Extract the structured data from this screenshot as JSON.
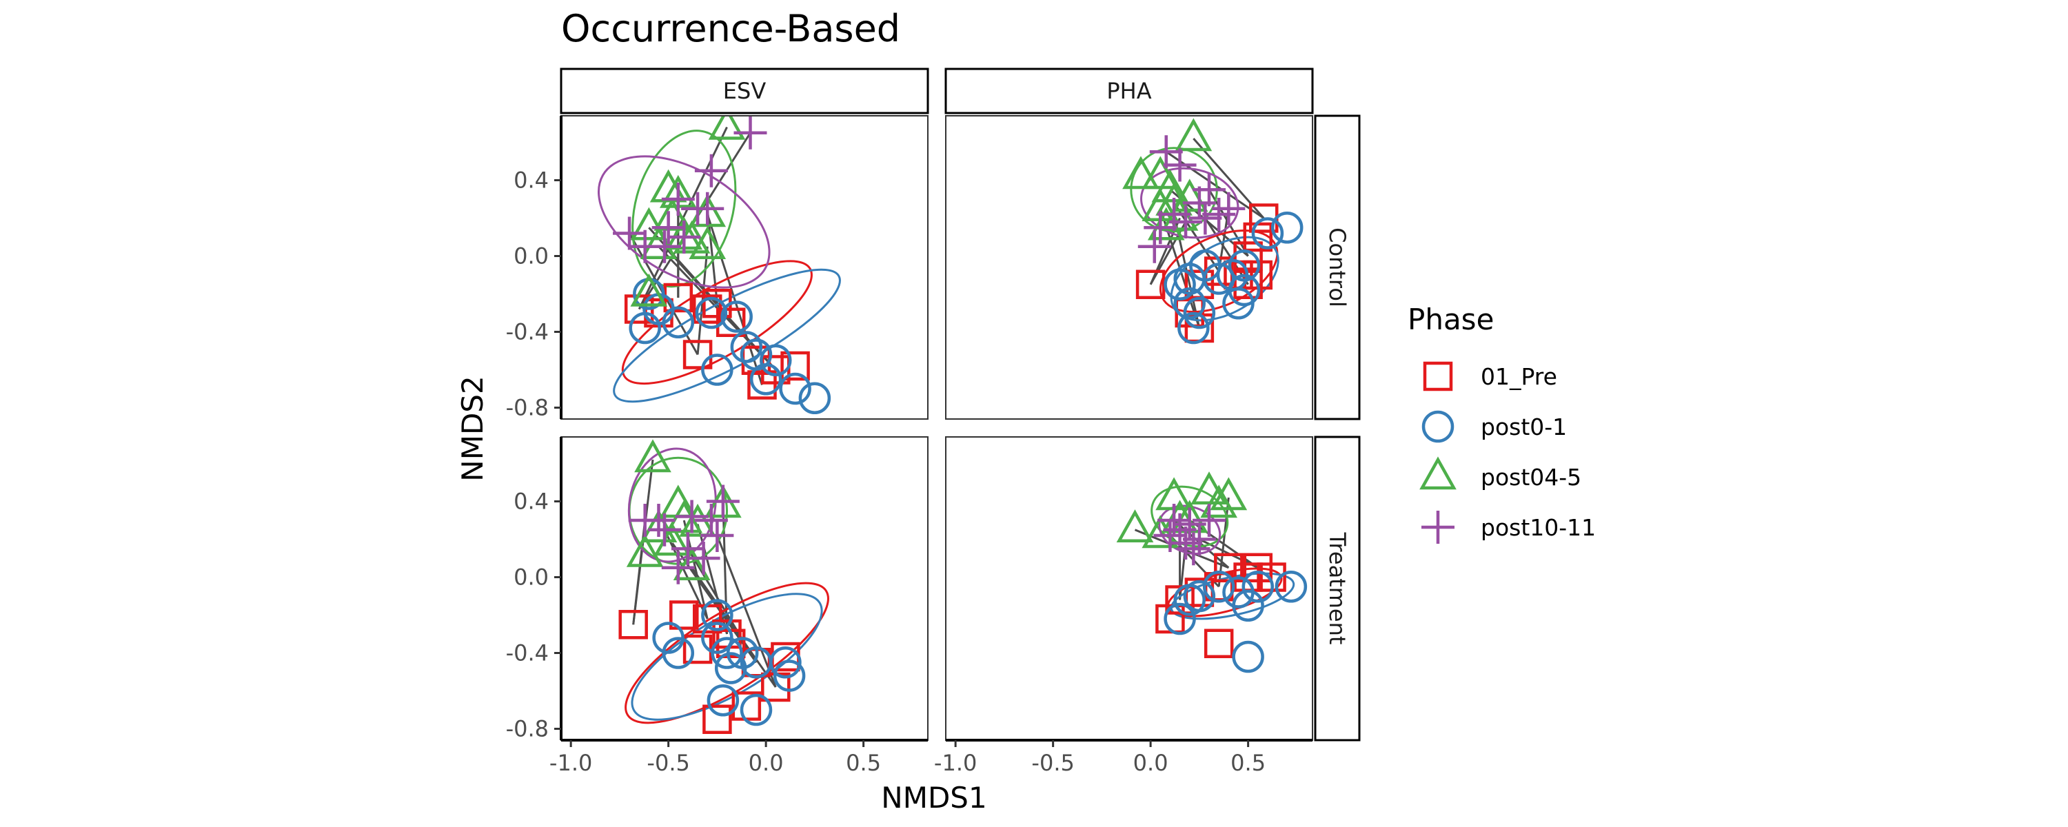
{
  "chart_data": {
    "type": "scatter",
    "title": "Occurrence-Based",
    "xlabel": "NMDS1",
    "ylabel": "NMDS2",
    "xlim": [
      -1.05,
      0.83
    ],
    "ylim": [
      -0.86,
      0.74
    ],
    "x_ticks": [
      -1.0,
      -0.5,
      0.0,
      0.5
    ],
    "x_tick_labels": [
      "-1.0",
      "-0.5",
      "0.0",
      "0.5"
    ],
    "y_ticks": [
      -0.8,
      -0.4,
      0.0,
      0.4
    ],
    "y_tick_labels": [
      "-0.8",
      "-0.4",
      "0.0",
      "0.4"
    ],
    "grid": false,
    "column_facets": [
      "ESV",
      "PHA"
    ],
    "row_facets": [
      "Control",
      "Treatment"
    ],
    "legend": {
      "title": "Phase",
      "placement": "right",
      "entries": [
        {
          "label": "01_Pre",
          "shape": "square",
          "color": "#E41A1C"
        },
        {
          "label": "post0-1",
          "shape": "circle",
          "color": "#377EB8"
        },
        {
          "label": "post04-5",
          "shape": "triangle",
          "color": "#4DAF4A"
        },
        {
          "label": "post10-11",
          "shape": "plus",
          "color": "#984EA3"
        }
      ]
    },
    "ellipses_per_phase": true,
    "trajectory_lines": true,
    "panels": [
      {
        "column": "ESV",
        "row": "Control",
        "series": [
          {
            "phase": "01_Pre",
            "points": [
              [
                -0.65,
                -0.28
              ],
              [
                -0.55,
                -0.3
              ],
              [
                -0.45,
                -0.22
              ],
              [
                -0.3,
                -0.28
              ],
              [
                -0.25,
                -0.25
              ],
              [
                -0.18,
                -0.35
              ],
              [
                -0.35,
                -0.52
              ],
              [
                -0.05,
                -0.55
              ],
              [
                0.05,
                -0.6
              ],
              [
                0.15,
                -0.58
              ],
              [
                -0.02,
                -0.68
              ]
            ]
          },
          {
            "phase": "post0-1",
            "points": [
              [
                -0.6,
                -0.2
              ],
              [
                -0.55,
                -0.28
              ],
              [
                -0.62,
                -0.38
              ],
              [
                -0.45,
                -0.35
              ],
              [
                -0.28,
                -0.3
              ],
              [
                -0.15,
                -0.32
              ],
              [
                -0.1,
                -0.48
              ],
              [
                -0.05,
                -0.52
              ],
              [
                0.05,
                -0.55
              ],
              [
                -0.25,
                -0.6
              ],
              [
                0.0,
                -0.65
              ],
              [
                0.15,
                -0.7
              ],
              [
                0.25,
                -0.75
              ]
            ]
          },
          {
            "phase": "post04-5",
            "points": [
              [
                -0.2,
                0.68
              ],
              [
                -0.5,
                0.35
              ],
              [
                -0.45,
                0.32
              ],
              [
                -0.48,
                0.2
              ],
              [
                -0.6,
                0.15
              ],
              [
                -0.42,
                0.1
              ],
              [
                -0.3,
                0.05
              ],
              [
                -0.38,
                0.08
              ],
              [
                -0.55,
                0.05
              ],
              [
                -0.6,
                -0.2
              ],
              [
                -0.3,
                0.22
              ]
            ]
          },
          {
            "phase": "post10-11",
            "points": [
              [
                -0.08,
                0.65
              ],
              [
                -0.28,
                0.45
              ],
              [
                -0.45,
                0.3
              ],
              [
                -0.35,
                0.25
              ],
              [
                -0.3,
                0.25
              ],
              [
                -0.5,
                0.15
              ],
              [
                -0.7,
                0.12
              ],
              [
                -0.62,
                0.05
              ],
              [
                -0.52,
                0.05
              ],
              [
                -0.42,
                0.1
              ]
            ]
          }
        ],
        "ellipses": [
          {
            "phase": "01_Pre",
            "cx": -0.25,
            "cy": -0.35,
            "rx": 0.55,
            "ry": 0.18,
            "angle": -30
          },
          {
            "phase": "post0-1",
            "cx": -0.2,
            "cy": -0.42,
            "rx": 0.65,
            "ry": 0.17,
            "angle": -28
          },
          {
            "phase": "post04-5",
            "cx": -0.42,
            "cy": 0.25,
            "rx": 0.25,
            "ry": 0.42,
            "angle": 15
          },
          {
            "phase": "post10-11",
            "cx": -0.42,
            "cy": 0.18,
            "rx": 0.48,
            "ry": 0.28,
            "angle": 30
          }
        ]
      },
      {
        "column": "PHA",
        "row": "Control",
        "series": [
          {
            "phase": "01_Pre",
            "points": [
              [
                0.58,
                0.2
              ],
              [
                0.55,
                0.1
              ],
              [
                0.5,
                0.0
              ],
              [
                0.45,
                -0.1
              ],
              [
                0.35,
                -0.08
              ],
              [
                0.25,
                -0.15
              ],
              [
                0.0,
                -0.15
              ],
              [
                0.2,
                -0.3
              ],
              [
                0.25,
                -0.38
              ],
              [
                0.55,
                -0.1
              ],
              [
                0.5,
                -0.15
              ]
            ]
          },
          {
            "phase": "post0-1",
            "points": [
              [
                0.6,
                0.12
              ],
              [
                0.7,
                0.15
              ],
              [
                0.48,
                -0.05
              ],
              [
                0.42,
                -0.1
              ],
              [
                0.35,
                -0.12
              ],
              [
                0.28,
                -0.05
              ],
              [
                0.2,
                -0.12
              ],
              [
                0.15,
                -0.15
              ],
              [
                0.2,
                -0.25
              ],
              [
                0.25,
                -0.3
              ],
              [
                0.22,
                -0.38
              ],
              [
                0.48,
                -0.18
              ],
              [
                0.45,
                -0.25
              ]
            ]
          },
          {
            "phase": "post04-5",
            "points": [
              [
                0.22,
                0.62
              ],
              [
                0.05,
                0.42
              ],
              [
                0.1,
                0.35
              ],
              [
                -0.05,
                0.42
              ],
              [
                0.12,
                0.28
              ],
              [
                0.2,
                0.3
              ],
              [
                0.15,
                0.2
              ],
              [
                0.08,
                0.15
              ],
              [
                0.05,
                0.25
              ]
            ]
          },
          {
            "phase": "post10-11",
            "points": [
              [
                0.08,
                0.55
              ],
              [
                0.15,
                0.48
              ],
              [
                0.3,
                0.35
              ],
              [
                0.25,
                0.28
              ],
              [
                0.4,
                0.25
              ],
              [
                0.35,
                0.22
              ],
              [
                0.18,
                0.18
              ],
              [
                0.05,
                0.15
              ],
              [
                0.12,
                0.22
              ],
              [
                0.02,
                0.05
              ],
              [
                0.28,
                0.2
              ]
            ]
          }
        ],
        "ellipses": [
          {
            "phase": "01_Pre",
            "cx": 0.35,
            "cy": -0.08,
            "rx": 0.32,
            "ry": 0.18,
            "angle": -25
          },
          {
            "phase": "post0-1",
            "cx": 0.38,
            "cy": -0.12,
            "rx": 0.3,
            "ry": 0.18,
            "angle": -30
          },
          {
            "phase": "post04-5",
            "cx": 0.12,
            "cy": 0.35,
            "rx": 0.22,
            "ry": 0.22,
            "angle": 0
          },
          {
            "phase": "post10-11",
            "cx": 0.2,
            "cy": 0.28,
            "rx": 0.25,
            "ry": 0.18,
            "angle": 10
          }
        ]
      },
      {
        "column": "ESV",
        "row": "Treatment",
        "series": [
          {
            "phase": "01_Pre",
            "points": [
              [
                -0.68,
                -0.25
              ],
              [
                -0.42,
                -0.2
              ],
              [
                -0.3,
                -0.22
              ],
              [
                -0.35,
                -0.38
              ],
              [
                -0.2,
                -0.3
              ],
              [
                -0.18,
                -0.35
              ],
              [
                -0.05,
                -0.45
              ],
              [
                0.1,
                -0.42
              ],
              [
                0.05,
                -0.58
              ],
              [
                -0.1,
                -0.68
              ],
              [
                -0.25,
                -0.75
              ]
            ]
          },
          {
            "phase": "post0-1",
            "points": [
              [
                -0.5,
                -0.32
              ],
              [
                -0.45,
                -0.4
              ],
              [
                -0.25,
                -0.2
              ],
              [
                -0.25,
                -0.32
              ],
              [
                -0.2,
                -0.4
              ],
              [
                -0.12,
                -0.4
              ],
              [
                -0.05,
                -0.45
              ],
              [
                -0.18,
                -0.48
              ],
              [
                0.1,
                -0.45
              ],
              [
                0.12,
                -0.52
              ],
              [
                -0.22,
                -0.65
              ],
              [
                -0.05,
                -0.7
              ]
            ]
          },
          {
            "phase": "post04-5",
            "points": [
              [
                -0.58,
                0.62
              ],
              [
                -0.45,
                0.38
              ],
              [
                -0.42,
                0.3
              ],
              [
                -0.22,
                0.38
              ],
              [
                -0.35,
                0.28
              ],
              [
                -0.55,
                0.25
              ],
              [
                -0.48,
                0.18
              ],
              [
                -0.62,
                0.12
              ],
              [
                -0.38,
                0.05
              ]
            ]
          },
          {
            "phase": "post10-11",
            "points": [
              [
                -0.62,
                0.3
              ],
              [
                -0.55,
                0.3
              ],
              [
                -0.52,
                0.25
              ],
              [
                -0.38,
                0.32
              ],
              [
                -0.22,
                0.4
              ],
              [
                -0.28,
                0.3
              ],
              [
                -0.4,
                0.15
              ],
              [
                -0.45,
                0.05
              ],
              [
                -0.25,
                0.22
              ],
              [
                -0.32,
                0.1
              ]
            ]
          }
        ],
        "ellipses": [
          {
            "phase": "01_Pre",
            "cx": -0.2,
            "cy": -0.4,
            "rx": 0.6,
            "ry": 0.2,
            "angle": -32
          },
          {
            "phase": "post0-1",
            "cx": -0.2,
            "cy": -0.42,
            "rx": 0.55,
            "ry": 0.2,
            "angle": -30
          },
          {
            "phase": "post04-5",
            "cx": -0.45,
            "cy": 0.35,
            "rx": 0.25,
            "ry": 0.28,
            "angle": 0
          },
          {
            "phase": "post10-11",
            "cx": -0.48,
            "cy": 0.38,
            "rx": 0.22,
            "ry": 0.3,
            "angle": 10
          }
        ]
      },
      {
        "column": "PHA",
        "row": "Treatment",
        "series": [
          {
            "phase": "01_Pre",
            "points": [
              [
                0.4,
                0.05
              ],
              [
                0.5,
                0.0
              ],
              [
                0.55,
                0.05
              ],
              [
                0.62,
                0.0
              ],
              [
                0.35,
                -0.05
              ],
              [
                0.25,
                -0.08
              ],
              [
                0.15,
                -0.12
              ],
              [
                0.1,
                -0.22
              ],
              [
                0.35,
                -0.35
              ]
            ]
          },
          {
            "phase": "post0-1",
            "points": [
              [
                0.72,
                -0.05
              ],
              [
                0.55,
                -0.05
              ],
              [
                0.45,
                -0.08
              ],
              [
                0.35,
                -0.05
              ],
              [
                0.25,
                -0.1
              ],
              [
                0.2,
                -0.12
              ],
              [
                0.15,
                -0.22
              ],
              [
                0.5,
                -0.15
              ],
              [
                0.5,
                -0.42
              ]
            ]
          },
          {
            "phase": "post04-5",
            "points": [
              [
                -0.08,
                0.25
              ],
              [
                0.12,
                0.42
              ],
              [
                0.2,
                0.3
              ],
              [
                0.3,
                0.45
              ],
              [
                0.4,
                0.42
              ],
              [
                0.35,
                0.38
              ],
              [
                0.15,
                0.3
              ],
              [
                0.05,
                0.22
              ]
            ]
          },
          {
            "phase": "post10-11",
            "points": [
              [
                0.12,
                0.3
              ],
              [
                0.2,
                0.28
              ],
              [
                0.25,
                0.2
              ],
              [
                0.15,
                0.25
              ],
              [
                0.1,
                0.22
              ],
              [
                0.3,
                0.3
              ],
              [
                0.18,
                0.18
              ],
              [
                0.22,
                0.15
              ]
            ]
          }
        ],
        "ellipses": [
          {
            "phase": "01_Pre",
            "cx": 0.38,
            "cy": -0.08,
            "rx": 0.3,
            "ry": 0.1,
            "angle": -15
          },
          {
            "phase": "post0-1",
            "cx": 0.42,
            "cy": -0.1,
            "rx": 0.32,
            "ry": 0.1,
            "angle": -12
          },
          {
            "phase": "post04-5",
            "cx": 0.2,
            "cy": 0.32,
            "rx": 0.2,
            "ry": 0.15,
            "angle": 20
          },
          {
            "phase": "post10-11",
            "cx": 0.2,
            "cy": 0.25,
            "rx": 0.16,
            "ry": 0.12,
            "angle": 20
          }
        ]
      }
    ]
  }
}
